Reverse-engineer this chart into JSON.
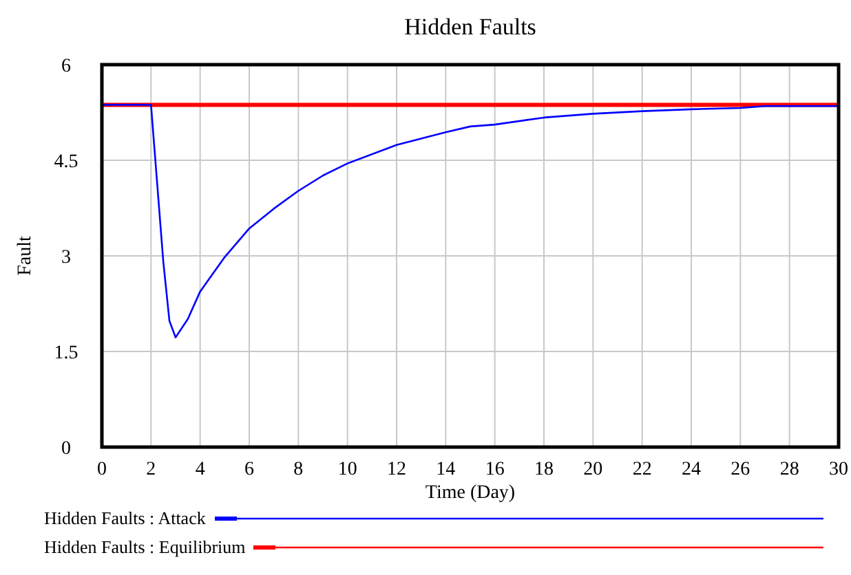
{
  "chart_data": {
    "type": "line",
    "title": "Hidden Faults",
    "xlabel": "Time (Day)",
    "ylabel": "Fault",
    "xlim": [
      0,
      30
    ],
    "ylim": [
      0,
      6
    ],
    "xticks": [
      0,
      2,
      4,
      6,
      8,
      10,
      12,
      14,
      16,
      18,
      20,
      22,
      24,
      26,
      28,
      30
    ],
    "yticks": [
      0,
      1.5,
      3,
      4.5,
      6
    ],
    "grid": true,
    "legend": "bottom",
    "marker": "none",
    "line_style": "solid",
    "series": [
      {
        "name": "Hidden Faults : Attack",
        "color": "#0000ff",
        "x": [
          0,
          2,
          2.5,
          2.75,
          3,
          3.5,
          4,
          5,
          6,
          7,
          8,
          9,
          10,
          12,
          14,
          15,
          16,
          18,
          20,
          22,
          24,
          26,
          27,
          30
        ],
        "values": [
          5.37,
          5.37,
          2.91,
          1.98,
          1.72,
          2.01,
          2.44,
          2.98,
          3.43,
          3.74,
          4.02,
          4.26,
          4.45,
          4.74,
          4.94,
          5.03,
          5.06,
          5.17,
          5.23,
          5.27,
          5.3,
          5.32,
          5.35,
          5.35
        ]
      },
      {
        "name": "Hidden Faults : Equilibrium",
        "color": "#ff0000",
        "x": [
          0,
          30
        ],
        "values": [
          5.37,
          5.37
        ]
      }
    ]
  }
}
